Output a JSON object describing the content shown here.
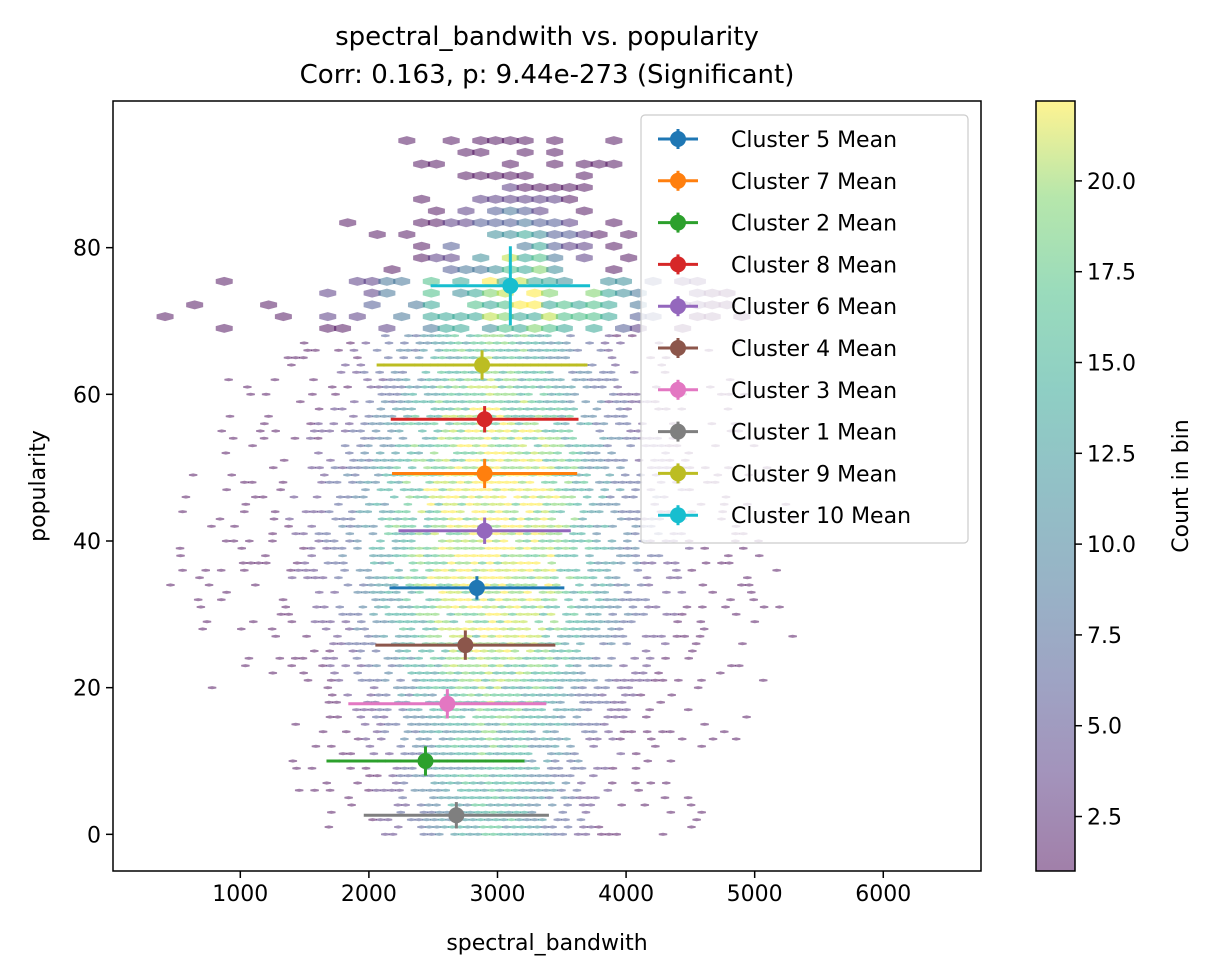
{
  "chart_data": {
    "type": "scatter",
    "title": "spectral_bandwith vs. popularity",
    "subtitle": "Corr: 0.163, p: 9.44e-273 (Significant)",
    "xlabel": "spectral_bandwith",
    "ylabel": "popularity",
    "xlim": [
      10,
      6760
    ],
    "ylim": [
      -5,
      100
    ],
    "xticks": [
      1000,
      2000,
      3000,
      4000,
      5000,
      6000
    ],
    "yticks": [
      0,
      20,
      40,
      60,
      80
    ],
    "grid": false,
    "legend_position": "upper right",
    "colorbar": {
      "label": "Count in bin",
      "range": [
        1,
        22.2
      ],
      "ticks": [
        2.5,
        5.0,
        7.5,
        10.0,
        12.5,
        15.0,
        17.5,
        20.0
      ],
      "colormap": "viridis",
      "alpha": 0.5
    },
    "series": [
      {
        "name": "Cluster 5 Mean",
        "color": "#1f77b4",
        "x": 2840,
        "y": 33.6,
        "xerr": 680,
        "yerr": 1.6
      },
      {
        "name": "Cluster 7 Mean",
        "color": "#ff7f0e",
        "x": 2900,
        "y": 49.2,
        "xerr": 720,
        "yerr": 2.0
      },
      {
        "name": "Cluster 2 Mean",
        "color": "#2ca02c",
        "x": 2440,
        "y": 10.0,
        "xerr": 770,
        "yerr": 2.0
      },
      {
        "name": "Cluster 8 Mean",
        "color": "#d62728",
        "x": 2900,
        "y": 56.6,
        "xerr": 730,
        "yerr": 1.8
      },
      {
        "name": "Cluster 6 Mean",
        "color": "#9467bd",
        "x": 2900,
        "y": 41.4,
        "xerr": 670,
        "yerr": 1.8
      },
      {
        "name": "Cluster 4 Mean",
        "color": "#8c564b",
        "x": 2750,
        "y": 25.8,
        "xerr": 700,
        "yerr": 2.0
      },
      {
        "name": "Cluster 3 Mean",
        "color": "#e377c2",
        "x": 2610,
        "y": 17.8,
        "xerr": 770,
        "yerr": 2.0
      },
      {
        "name": "Cluster 1 Mean",
        "color": "#7f7f7f",
        "x": 2680,
        "y": 2.6,
        "xerr": 720,
        "yerr": 1.8
      },
      {
        "name": "Cluster 9 Mean",
        "color": "#bcbd22",
        "x": 2880,
        "y": 64.0,
        "xerr": 820,
        "yerr": 2.0
      },
      {
        "name": "Cluster 10 Mean",
        "color": "#17becf",
        "x": 3100,
        "y": 74.8,
        "xerr": 620,
        "yerr": 5.4
      }
    ]
  }
}
